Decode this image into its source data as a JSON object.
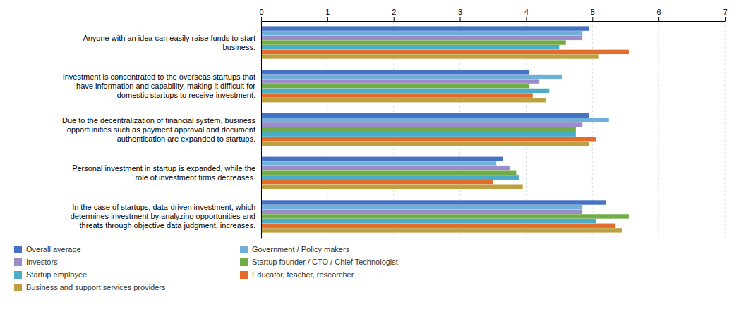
{
  "chart_data": {
    "type": "bar",
    "orientation": "horizontal",
    "categories": [
      "Anyone with an idea can easily raise funds to start\nbusiness.",
      "Investment is concentrated to the overseas startups that\nhave information and capability, making it difficult for\ndomestic startups to receive investment.",
      "Due to the decentralization of financial system, business\nopportunities such as payment approval and document\nauthentication are expanded to startups.",
      "Personal investment in startup is expanded, while the\nrole of investment firms decreases.",
      "In the case of startups, data-driven investment, which\ndetermines investment by analyzing opportunities and\nthreats through objective data judgment, increases."
    ],
    "series": [
      {
        "name": "Overall average",
        "color": "#4472C4",
        "values": [
          4.95,
          4.05,
          4.95,
          3.65,
          5.2
        ]
      },
      {
        "name": "Government / Policy makers",
        "color": "#70B0D8",
        "values": [
          4.85,
          4.55,
          5.25,
          3.55,
          4.85
        ]
      },
      {
        "name": "Investors",
        "color": "#9B8DC8",
        "values": [
          4.85,
          4.2,
          4.85,
          3.75,
          4.85
        ]
      },
      {
        "name": "Startup founder / CTO / Chief Technologist",
        "color": "#70AD47",
        "values": [
          4.6,
          4.05,
          4.75,
          3.85,
          5.55
        ]
      },
      {
        "name": "Startup employee",
        "color": "#4BACC6",
        "values": [
          4.5,
          4.35,
          4.75,
          3.9,
          5.05
        ]
      },
      {
        "name": "Educator, teacher, researcher",
        "color": "#E36C2A",
        "values": [
          5.55,
          4.1,
          5.05,
          3.5,
          5.35
        ]
      },
      {
        "name": "Business and support services providers",
        "color": "#BFA040",
        "values": [
          5.1,
          4.3,
          4.95,
          3.95,
          5.45
        ]
      }
    ],
    "xlim": [
      0,
      7
    ],
    "xticks": [
      0,
      1,
      2,
      3,
      4,
      5,
      6,
      7
    ],
    "grid": true,
    "legend": "bottom"
  }
}
